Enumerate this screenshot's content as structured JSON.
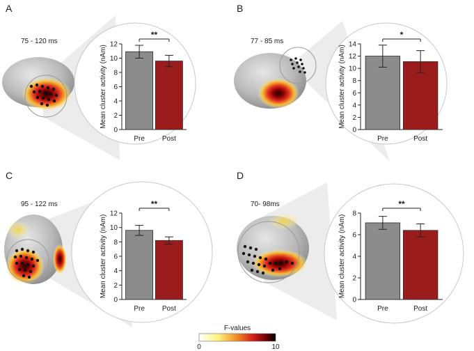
{
  "colors": {
    "pre": "#8c8c8c",
    "post": "#9b1c1c",
    "brain": "#b9b9b9",
    "zoom": "#e8e8e8"
  },
  "chart_data": [
    {
      "type": "bar",
      "panel": "A",
      "time_window": "75 - 120 ms",
      "ylabel": "Mean cluster activity (nAm)",
      "categories": [
        "Pre",
        "Post"
      ],
      "values": [
        10.9,
        9.6
      ],
      "errors": [
        0.9,
        0.8
      ],
      "ylim": [
        0,
        12
      ],
      "yticks": [
        0,
        2,
        4,
        6,
        8,
        10,
        12
      ],
      "significance": "**"
    },
    {
      "type": "bar",
      "panel": "B",
      "time_window": "77 - 85 ms",
      "ylabel": "Mean cluster activity (nAm)",
      "categories": [
        "Pre",
        "Post"
      ],
      "values": [
        12.0,
        11.1
      ],
      "errors": [
        1.8,
        1.8
      ],
      "ylim": [
        0,
        14
      ],
      "yticks": [
        0,
        2,
        4,
        6,
        8,
        10,
        12,
        14
      ],
      "significance": "*"
    },
    {
      "type": "bar",
      "panel": "C",
      "time_window": "95 - 122 ms",
      "ylabel": "Mean cluster activity (nAm)",
      "categories": [
        "Pre",
        "Post"
      ],
      "values": [
        9.6,
        8.2
      ],
      "errors": [
        0.7,
        0.5
      ],
      "ylim": [
        0,
        12
      ],
      "yticks": [
        0,
        2,
        4,
        6,
        8,
        10,
        12
      ],
      "significance": "**"
    },
    {
      "type": "bar",
      "panel": "D",
      "time_window": "70- 98ms",
      "ylabel": "Mean cluster activity (nAm)",
      "categories": [
        "Pre",
        "Post"
      ],
      "values": [
        7.1,
        6.4
      ],
      "errors": [
        0.6,
        0.6
      ],
      "ylim": [
        0,
        8
      ],
      "yticks": [
        0,
        2,
        4,
        6,
        8
      ],
      "significance": "**"
    }
  ],
  "colorbar": {
    "title": "F-values",
    "min": 0,
    "max": 10,
    "min_label": "0",
    "max_label": "10"
  }
}
